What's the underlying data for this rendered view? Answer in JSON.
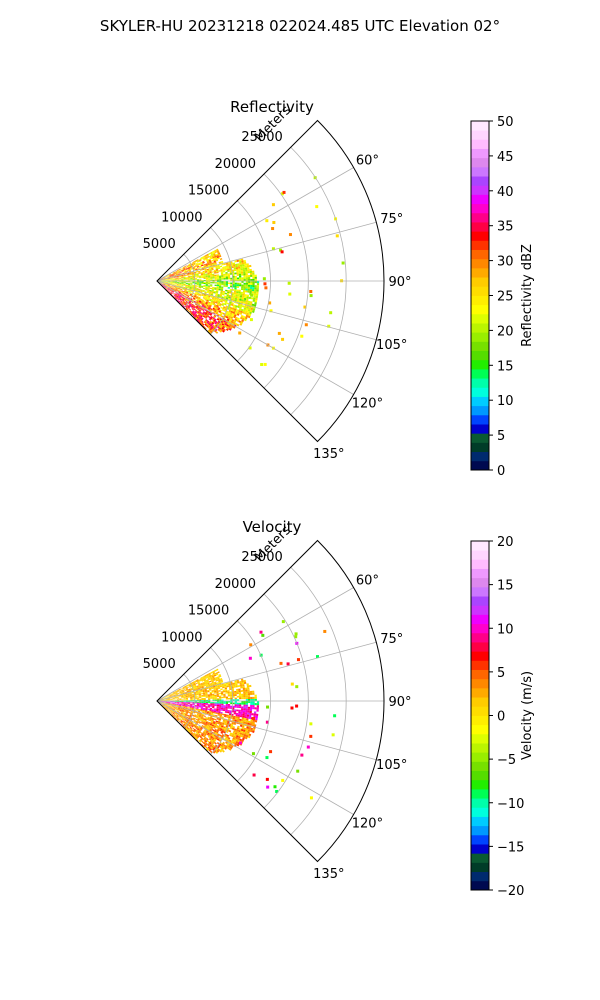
{
  "suptitle": "SKYLER-HU  20231218  022024.485 UTC Elevation 02°",
  "chart_data": [
    {
      "type": "heatmap",
      "title": "Reflectivity",
      "projection": "polar-sector",
      "azimuth_range_deg": [
        45,
        135
      ],
      "azimuth_ticks": [
        "60°",
        "75°",
        "90°",
        "105°",
        "120°",
        "135°"
      ],
      "range_label": "Meters",
      "range_ticks": [
        "5000",
        "10000",
        "15000",
        "20000",
        "25000"
      ],
      "range_max_m": 30000,
      "grid": true,
      "colorbar": {
        "label": "Reflectivity dBZ",
        "min": 0,
        "max": 50,
        "ticks": [
          "0",
          "5",
          "10",
          "15",
          "20",
          "25",
          "30",
          "35",
          "40",
          "45",
          "50"
        ],
        "colors": [
          "#000a50",
          "#002a6e",
          "#003c28",
          "#0a5a32",
          "#0000cc",
          "#0044ff",
          "#0099ff",
          "#00ccff",
          "#00ffdd",
          "#00ffaa",
          "#00ff55",
          "#22ee00",
          "#55dd00",
          "#77e000",
          "#99ee00",
          "#bbf500",
          "#ddff00",
          "#ffff00",
          "#ffee00",
          "#ffdd00",
          "#ffcc00",
          "#ffaa00",
          "#ff8800",
          "#ff6600",
          "#ff3300",
          "#ff0000",
          "#ff0044",
          "#ff0088",
          "#ff00cc",
          "#ee00ff",
          "#cc33ff",
          "#aa44ff",
          "#cc77ff",
          "#dd88ee",
          "#ee99ff",
          "#ffbbff",
          "#ffd5ff",
          "#ffe8ff"
        ]
      }
    },
    {
      "type": "heatmap",
      "title": "Velocity",
      "projection": "polar-sector",
      "azimuth_range_deg": [
        45,
        135
      ],
      "azimuth_ticks": [
        "60°",
        "75°",
        "90°",
        "105°",
        "120°",
        "135°"
      ],
      "range_label": "Meters",
      "range_ticks": [
        "5000",
        "10000",
        "15000",
        "20000",
        "25000"
      ],
      "range_max_m": 30000,
      "grid": true,
      "colorbar": {
        "label": "Velocity (m/s)",
        "min": -20,
        "max": 20,
        "ticks": [
          "−20",
          "−15",
          "−10",
          "−5",
          "0",
          "5",
          "10",
          "15",
          "20"
        ],
        "colors": [
          "#000a50",
          "#002a6e",
          "#003c28",
          "#0a5a32",
          "#0000cc",
          "#0044ff",
          "#0099ff",
          "#00ccff",
          "#00ffdd",
          "#00ffaa",
          "#00ff55",
          "#22ee00",
          "#55dd00",
          "#77e000",
          "#99ee00",
          "#bbf500",
          "#ddff00",
          "#ffff00",
          "#ffee00",
          "#ffdd00",
          "#ffcc00",
          "#ffaa00",
          "#ff8800",
          "#ff6600",
          "#ff3300",
          "#ff0000",
          "#ff0044",
          "#ff0088",
          "#ff00cc",
          "#ee00ff",
          "#cc33ff",
          "#aa44ff",
          "#cc77ff",
          "#dd88ee",
          "#ee99ff",
          "#ffbbff",
          "#ffd5ff",
          "#ffe8ff"
        ]
      }
    }
  ]
}
